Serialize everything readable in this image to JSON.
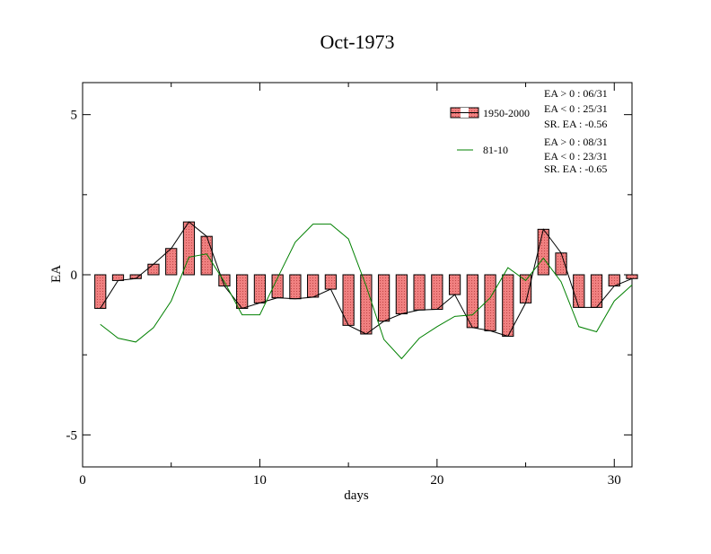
{
  "chart_data": {
    "type": "bar",
    "title": "Oct-1973",
    "xlabel": "days",
    "ylabel": "EA",
    "xlim": [
      0,
      31
    ],
    "ylim": [
      -6,
      6
    ],
    "xticks": [
      0,
      10,
      20,
      30
    ],
    "xtick_labels": [
      "0",
      "10",
      "20",
      "30"
    ],
    "yticks": [
      -5,
      0,
      5
    ],
    "ytick_labels": [
      "-5",
      "0",
      "5"
    ],
    "series": [
      {
        "name": "1950-2000",
        "kind": "bar+line",
        "fill": "#f08080",
        "line_color": "#000000",
        "x": [
          1,
          2,
          3,
          4,
          5,
          6,
          7,
          8,
          9,
          10,
          11,
          12,
          13,
          14,
          15,
          16,
          17,
          18,
          19,
          20,
          21,
          22,
          23,
          24,
          25,
          26,
          27,
          28,
          29,
          30,
          31
        ],
        "values": [
          -1.05,
          -0.18,
          -0.12,
          0.33,
          0.82,
          1.65,
          1.2,
          -0.35,
          -1.05,
          -0.88,
          -0.72,
          -0.75,
          -0.7,
          -0.45,
          -1.58,
          -1.85,
          -1.45,
          -1.22,
          -1.1,
          -1.08,
          -0.62,
          -1.65,
          -1.75,
          -1.92,
          -0.88,
          1.42,
          0.68,
          -1.02,
          -1.02,
          -0.35,
          -0.12
        ]
      },
      {
        "name": "81-10",
        "kind": "line",
        "color": "#008000",
        "x": [
          1,
          2,
          3,
          4,
          5,
          6,
          7,
          8,
          9,
          10,
          11,
          12,
          13,
          14,
          15,
          16,
          17,
          18,
          19,
          20,
          21,
          22,
          23,
          24,
          25,
          26,
          27,
          28,
          29,
          30,
          31
        ],
        "values": [
          -1.55,
          -1.98,
          -2.1,
          -1.65,
          -0.82,
          0.55,
          0.65,
          -0.22,
          -1.25,
          -1.25,
          -0.1,
          1.02,
          1.58,
          1.58,
          1.12,
          -0.35,
          -2.02,
          -2.62,
          -1.98,
          -1.62,
          -1.3,
          -1.25,
          -0.72,
          0.22,
          -0.18,
          0.52,
          -0.22,
          -1.62,
          -1.78,
          -0.82,
          -0.32
        ]
      }
    ],
    "stats": [
      {
        "pos": "EA > 0 : 06/31",
        "neg": "EA < 0 : 25/31",
        "sr": "SR. EA : -0.56"
      },
      {
        "pos": "EA > 0 : 08/31",
        "neg": "EA < 0 : 23/31",
        "sr": "SR. EA : -0.65"
      }
    ],
    "grid": false,
    "legend_position": "top-right"
  }
}
